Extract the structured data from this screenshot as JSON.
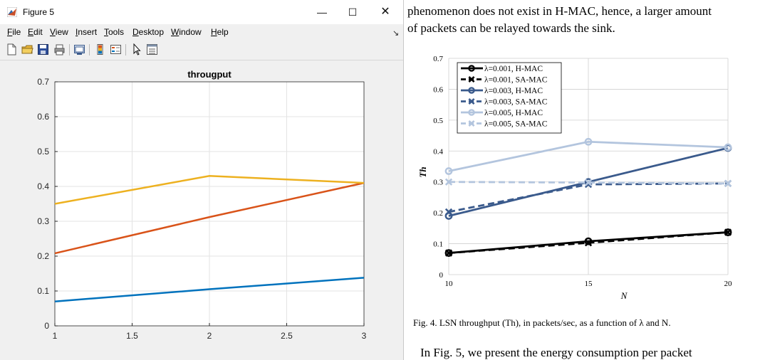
{
  "window": {
    "title": "Figure 5",
    "minimize_glyph": "—",
    "maximize_glyph": "☐",
    "close_glyph": "✕",
    "dock_glyph": "↘"
  },
  "menu": [
    {
      "u": "F",
      "rest": "ile"
    },
    {
      "u": "E",
      "rest": "dit"
    },
    {
      "u": "V",
      "rest": "iew"
    },
    {
      "u": "I",
      "rest": "nsert"
    },
    {
      "u": "T",
      "rest": "ools"
    },
    {
      "u": "D",
      "rest": "esktop"
    },
    {
      "u": "W",
      "rest": "indow"
    },
    {
      "u": "H",
      "rest": "elp"
    }
  ],
  "toolbar_icons": [
    "new-figure-icon",
    "open-file-icon",
    "save-icon",
    "print-icon",
    "link-plot-icon",
    "colorbar-icon",
    "legend-icon",
    "pointer-icon",
    "property-inspector-icon"
  ],
  "paper": {
    "line1": "phenomenon does not exist in H-MAC, hence, a larger amount",
    "line2": "of packets can be relayed towards the sink.",
    "caption": "Fig. 4.  LSN throughput (Th), in packets/sec, as a function of λ and N.",
    "line3": "In Fig. 5, we present the energy consumption per packet"
  },
  "chart_data": [
    {
      "type": "line",
      "title": "througput",
      "xlabel": "",
      "ylabel": "",
      "x": [
        1,
        2,
        3
      ],
      "xlim": [
        1,
        3
      ],
      "ylim": [
        0,
        0.7
      ],
      "xticks": [
        "1",
        "1.5",
        "2",
        "2.5",
        "3"
      ],
      "yticks": [
        "0",
        "0.1",
        "0.2",
        "0.3",
        "0.4",
        "0.5",
        "0.6",
        "0.7"
      ],
      "grid": true,
      "legend": "none",
      "series": [
        {
          "values": [
            0.07,
            0.105,
            0.138
          ],
          "color": "#0072bd"
        },
        {
          "values": [
            0.208,
            0.312,
            0.41
          ],
          "color": "#d95319"
        },
        {
          "values": [
            0.35,
            0.43,
            0.41
          ],
          "color": "#edb120"
        }
      ]
    },
    {
      "type": "line",
      "title": "",
      "xlabel": "N",
      "ylabel": "Th",
      "x": [
        10,
        15,
        20
      ],
      "xlim": [
        10,
        20
      ],
      "ylim": [
        0,
        0.7
      ],
      "xticks": [
        "10",
        "15",
        "20"
      ],
      "yticks": [
        "0",
        "0.1",
        "0.2",
        "0.3",
        "0.4",
        "0.5",
        "0.6",
        "0.7"
      ],
      "grid": true,
      "legend": "top-left",
      "series": [
        {
          "name": "λ=0.001, H-MAC",
          "values": [
            0.07,
            0.108,
            0.137
          ],
          "color": "#000000",
          "marker": "o",
          "dash": false
        },
        {
          "name": "λ=0.001, SA-MAC",
          "values": [
            0.07,
            0.103,
            0.137
          ],
          "color": "#000000",
          "marker": "x",
          "dash": true
        },
        {
          "name": "λ=0.003, H-MAC",
          "values": [
            0.19,
            0.3,
            0.41
          ],
          "color": "#3a5a8c",
          "marker": "o",
          "dash": false
        },
        {
          "name": "λ=0.003, SA-MAC",
          "values": [
            0.203,
            0.292,
            0.295
          ],
          "color": "#3a5a8c",
          "marker": "x",
          "dash": true
        },
        {
          "name": "λ=0.005, H-MAC",
          "values": [
            0.335,
            0.43,
            0.412
          ],
          "color": "#b3c5de",
          "marker": "o",
          "dash": false
        },
        {
          "name": "λ=0.005, SA-MAC",
          "values": [
            0.3,
            0.298,
            0.295
          ],
          "color": "#b3c5de",
          "marker": "x",
          "dash": true
        }
      ]
    }
  ]
}
